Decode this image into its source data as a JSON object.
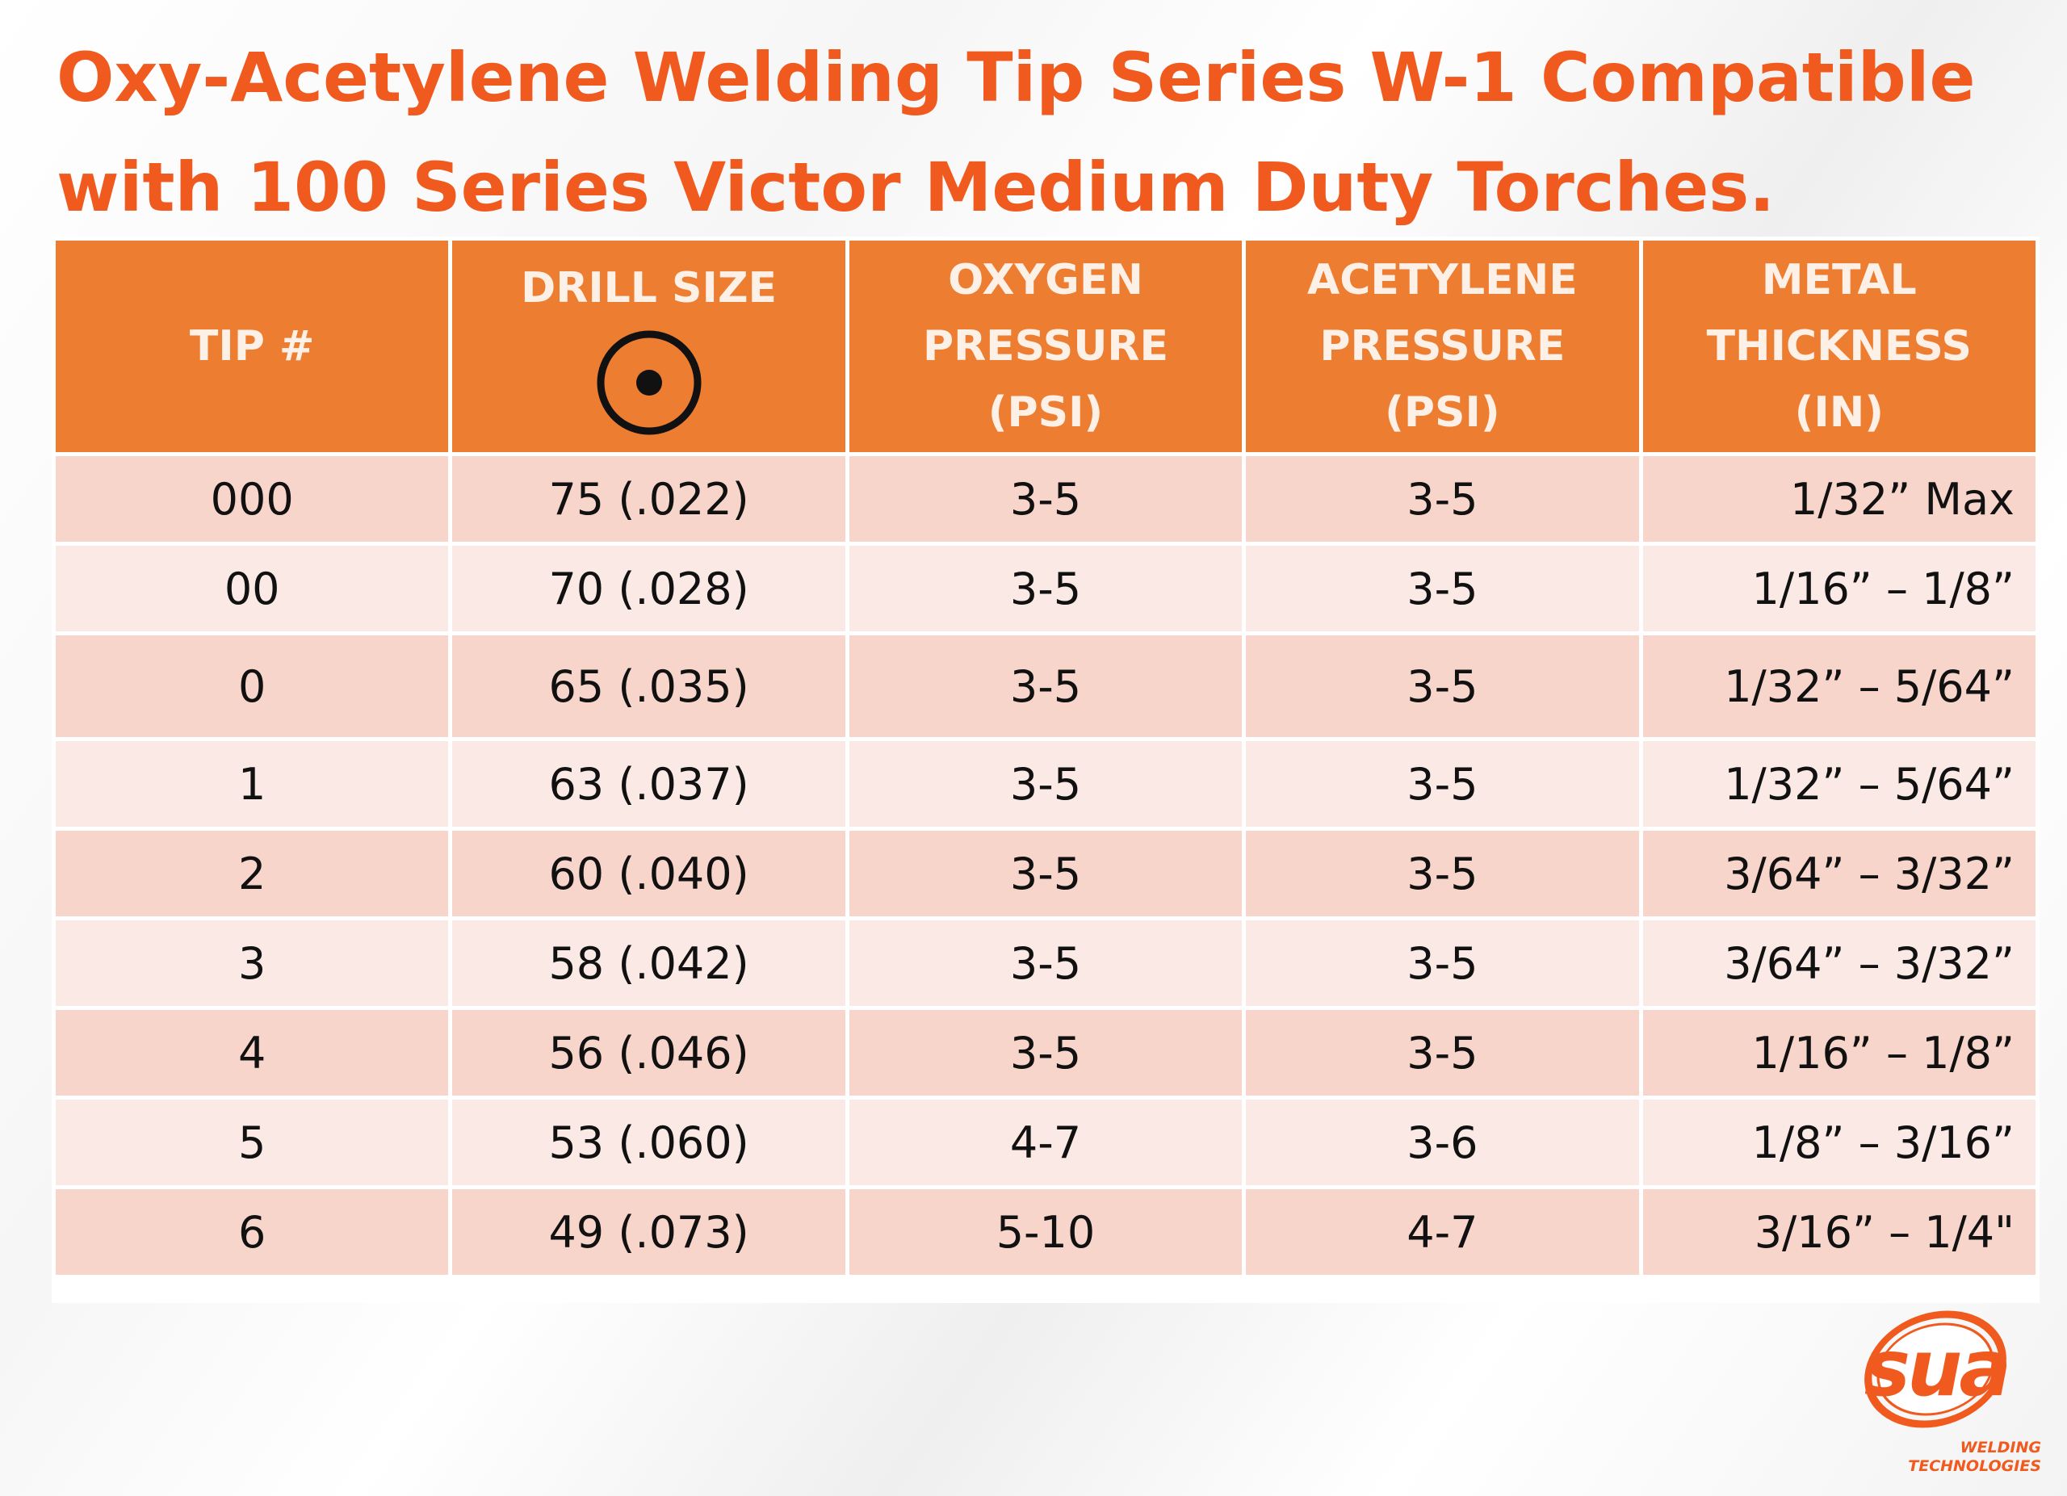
{
  "title": {
    "line1": "Oxy-Acetylene Welding Tip Series W-1 Compatible",
    "line2": "with 100 Series Victor Medium Duty Torches."
  },
  "table": {
    "headers": {
      "tip": "TIP #",
      "drill": "DRILL SIZE",
      "oxygen": [
        "OXYGEN",
        "PRESSURE",
        "(PSI)"
      ],
      "acetylene": [
        "ACETYLENE",
        "PRESSURE",
        "(PSI)"
      ],
      "metal": [
        "METAL",
        "THICKNESS",
        "(IN)"
      ]
    },
    "drill_symbol_icon": "drill-size-circle-dot-icon",
    "rows": [
      {
        "tip": "000",
        "drill": "75 (.022)",
        "oxygen": "3-5",
        "acetylene": "3-5",
        "metal": "1/32” Max"
      },
      {
        "tip": "00",
        "drill": "70 (.028)",
        "oxygen": "3-5",
        "acetylene": "3-5",
        "metal": "1/16” – 1/8”"
      },
      {
        "tip": "0",
        "drill": "65 (.035)",
        "oxygen": "3-5",
        "acetylene": "3-5",
        "metal": "1/32” – 5/64”"
      },
      {
        "tip": "1",
        "drill": "63 (.037)",
        "oxygen": "3-5",
        "acetylene": "3-5",
        "metal": "1/32” – 5/64”"
      },
      {
        "tip": "2",
        "drill": "60 (.040)",
        "oxygen": "3-5",
        "acetylene": "3-5",
        "metal": "3/64” – 3/32”"
      },
      {
        "tip": "3",
        "drill": "58 (.042)",
        "oxygen": "3-5",
        "acetylene": "3-5",
        "metal": "3/64” – 3/32”"
      },
      {
        "tip": "4",
        "drill": "56 (.046)",
        "oxygen": "3-5",
        "acetylene": "3-5",
        "metal": "1/16” – 1/8”"
      },
      {
        "tip": "5",
        "drill": "53 (.060)",
        "oxygen": "4-7",
        "acetylene": "3-6",
        "metal": "1/8” – 3/16”"
      },
      {
        "tip": "6",
        "drill": "49 (.073)",
        "oxygen": "5-10",
        "acetylene": "4-7",
        "metal": "3/16” – 1/4\""
      }
    ]
  },
  "logo": {
    "mark": "sua",
    "tagline": [
      "WELDING",
      "TECHNOLOGIES"
    ]
  },
  "colors": {
    "title": "#f05a1e",
    "header_bg": "#ed7d31",
    "row_odd": "#f8d5cb",
    "row_even": "#fbe9e5"
  }
}
